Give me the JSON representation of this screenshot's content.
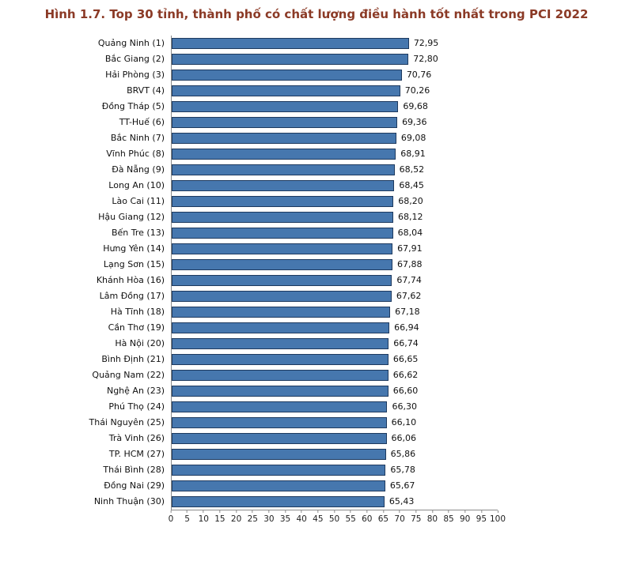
{
  "title": "Hình 1.7. Top 30 tỉnh, thành phố có chất lượng điều hành tốt nhất trong PCI 2022",
  "colors": {
    "bar_fill": "#4677AE",
    "bar_border": "#1E3A5F",
    "title": "#8B3A26",
    "axis": "#8a8a8a"
  },
  "chart_data": {
    "type": "bar",
    "orientation": "horizontal",
    "title": "Hình 1.7. Top 30 tỉnh, thành phố có chất lượng điều hành tốt nhất trong PCI 2022",
    "xlabel": "",
    "ylabel": "",
    "xlim": [
      0,
      100
    ],
    "x_ticks": [
      0,
      5,
      10,
      15,
      20,
      25,
      30,
      35,
      40,
      45,
      50,
      55,
      60,
      65,
      70,
      75,
      80,
      85,
      90,
      95,
      100
    ],
    "grid": false,
    "legend": false,
    "decimal_separator": ",",
    "categories": [
      "Quảng Ninh (1)",
      "Bắc Giang (2)",
      "Hải Phòng (3)",
      "BRVT (4)",
      "Đồng Tháp (5)",
      "TT-Huế (6)",
      "Bắc Ninh (7)",
      "Vĩnh Phúc (8)",
      "Đà Nẵng (9)",
      "Long An (10)",
      "Lào Cai (11)",
      "Hậu Giang (12)",
      "Bến Tre (13)",
      "Hưng Yên (14)",
      "Lạng Sơn (15)",
      "Khánh Hòa (16)",
      "Lâm Đồng (17)",
      "Hà Tĩnh (18)",
      "Cần Thơ (19)",
      "Hà Nội (20)",
      "Bình Định (21)",
      "Quảng Nam (22)",
      "Nghệ An (23)",
      "Phú Thọ (24)",
      "Thái Nguyên (25)",
      "Trà Vinh (26)",
      "TP. HCM (27)",
      "Thái Bình (28)",
      "Đồng Nai (29)",
      "Ninh Thuận (30)"
    ],
    "values": [
      72.95,
      72.8,
      70.76,
      70.26,
      69.68,
      69.36,
      69.08,
      68.91,
      68.52,
      68.45,
      68.2,
      68.12,
      68.04,
      67.91,
      67.88,
      67.74,
      67.62,
      67.18,
      66.94,
      66.74,
      66.65,
      66.62,
      66.6,
      66.3,
      66.1,
      66.06,
      65.86,
      65.78,
      65.67,
      65.43
    ],
    "value_labels": [
      "72,95",
      "72,80",
      "70,76",
      "70,26",
      "69,68",
      "69,36",
      "69,08",
      "68,91",
      "68,52",
      "68,45",
      "68,20",
      "68,12",
      "68,04",
      "67,91",
      "67,88",
      "67,74",
      "67,62",
      "67,18",
      "66,94",
      "66,74",
      "66,65",
      "66,62",
      "66,60",
      "66,30",
      "66,10",
      "66,06",
      "65,86",
      "65,78",
      "65,67",
      "65,43"
    ]
  }
}
